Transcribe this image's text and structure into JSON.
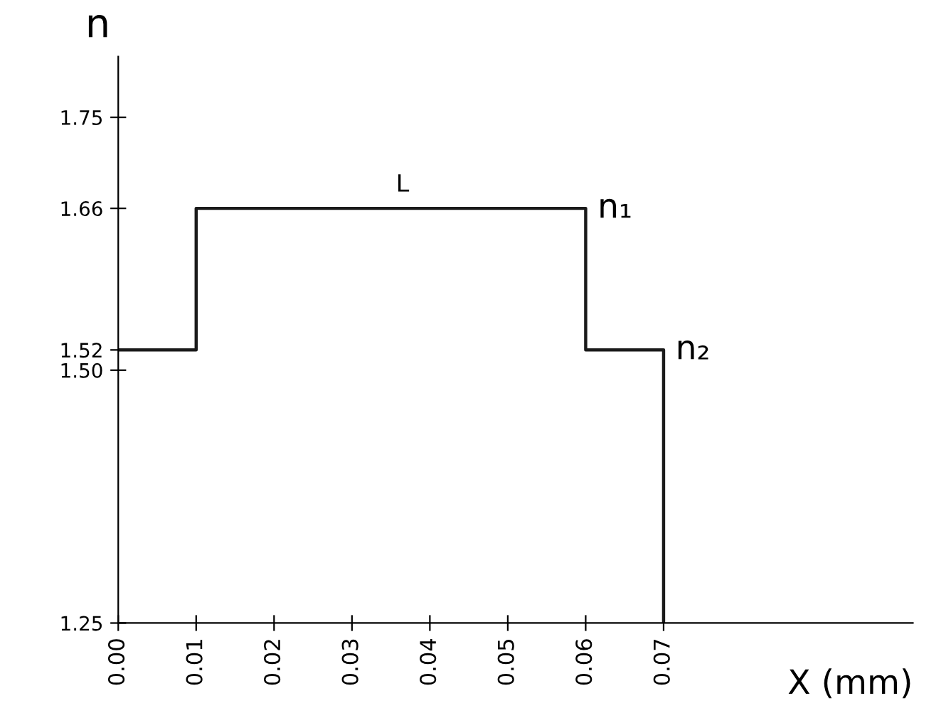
{
  "chart_data": {
    "type": "line",
    "xlabel": "X (mm)",
    "ylabel": "n",
    "x": [
      0,
      0.01,
      0.01,
      0.06,
      0.06,
      0.07,
      0.07
    ],
    "series": [
      {
        "color": "#1a1a1a",
        "values": [
          1.52,
          1.52,
          1.66,
          1.66,
          1.52,
          1.52,
          1.25
        ]
      }
    ],
    "xlim": [
      0,
      0.102
    ],
    "ylim": [
      1.25,
      1.81
    ],
    "xticks": [
      {
        "value": 0,
        "label": "0.00"
      },
      0.01,
      0.02,
      0.03,
      0.04,
      0.05,
      0.06,
      0.07
    ],
    "yticks": [
      1.25,
      {
        "value": 1.5,
        "label": "1.50"
      },
      1.52,
      1.66,
      1.75
    ],
    "annotations": [
      {
        "text": "L",
        "x": 0.0365,
        "y": 1.66
      },
      {
        "text": "n₁",
        "x": 0.06,
        "y": 1.66
      },
      {
        "text": "n₂",
        "x": 0.07,
        "y": 1.52
      }
    ],
    "grid": false,
    "marker": "none",
    "line_style": "solid"
  }
}
